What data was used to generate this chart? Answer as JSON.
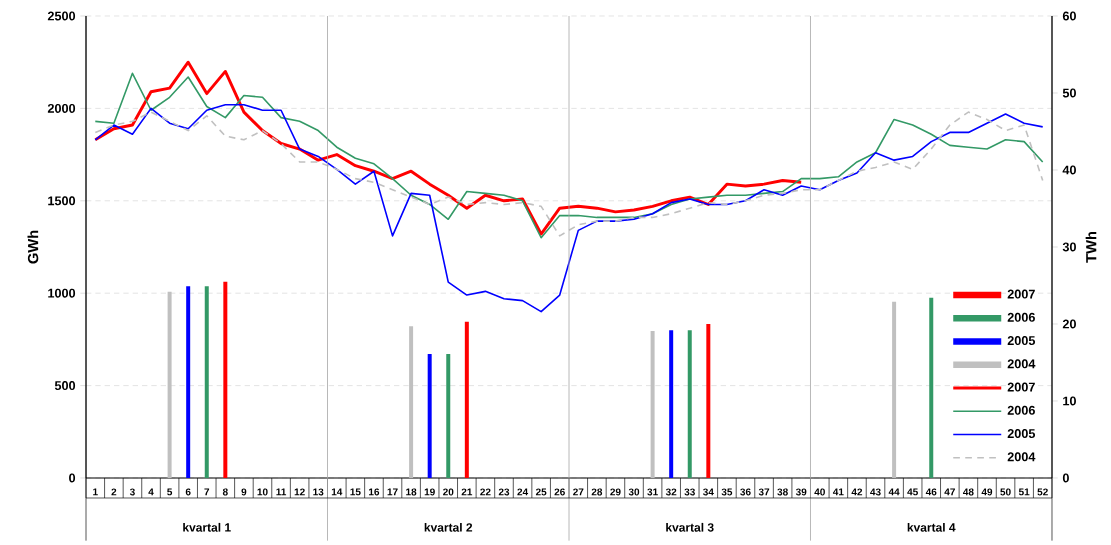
{
  "chart_data": {
    "type": "line",
    "ylabel": "GWh",
    "y2label": "TWh",
    "categories": [
      "1",
      "2",
      "3",
      "4",
      "5",
      "6",
      "7",
      "8",
      "9",
      "10",
      "11",
      "12",
      "13",
      "14",
      "15",
      "16",
      "17",
      "18",
      "19",
      "20",
      "21",
      "22",
      "23",
      "24",
      "25",
      "26",
      "27",
      "28",
      "29",
      "30",
      "31",
      "32",
      "33",
      "34",
      "35",
      "36",
      "37",
      "38",
      "39",
      "40",
      "41",
      "42",
      "43",
      "44",
      "45",
      "46",
      "47",
      "48",
      "49",
      "50",
      "51",
      "52"
    ],
    "annotations": [
      "kvartal 1",
      "kvartal 2",
      "kvartal 3",
      "kvartal 4"
    ],
    "ylim": [
      0,
      2500
    ],
    "yticks": [
      0,
      500,
      1000,
      1500,
      2000,
      2500
    ],
    "y2lim": [
      0,
      60
    ],
    "y2ticks": [
      0,
      10,
      20,
      30,
      40,
      50,
      60
    ],
    "grid": "y",
    "legend": "bottom right",
    "marker": "none",
    "series": [
      {
        "name": "2007",
        "type": "bar",
        "axis": "y2",
        "color": "#ff0000",
        "values": [
          null,
          null,
          null,
          null,
          null,
          null,
          null,
          25.5,
          null,
          null,
          null,
          null,
          null,
          null,
          null,
          null,
          null,
          null,
          null,
          null,
          20.3,
          null,
          null,
          null,
          null,
          null,
          null,
          null,
          null,
          null,
          null,
          null,
          null,
          20.0,
          null,
          null,
          null,
          null,
          null,
          null,
          null,
          null,
          null,
          null,
          null,
          null,
          null,
          null,
          null,
          null,
          null,
          null
        ]
      },
      {
        "name": "2006",
        "type": "bar",
        "axis": "y2",
        "color": "#339966",
        "values": [
          null,
          null,
          null,
          null,
          null,
          null,
          24.9,
          null,
          null,
          null,
          null,
          null,
          null,
          null,
          null,
          null,
          null,
          null,
          null,
          16.1,
          null,
          null,
          null,
          null,
          null,
          null,
          null,
          null,
          null,
          null,
          null,
          null,
          19.2,
          null,
          null,
          null,
          null,
          null,
          null,
          null,
          null,
          null,
          null,
          null,
          null,
          23.4,
          null,
          null,
          null,
          null,
          null,
          null
        ]
      },
      {
        "name": "2005",
        "type": "bar",
        "axis": "y2",
        "color": "#0000ff",
        "values": [
          null,
          null,
          null,
          null,
          null,
          24.9,
          null,
          null,
          null,
          null,
          null,
          null,
          null,
          null,
          null,
          null,
          null,
          null,
          16.1,
          null,
          null,
          null,
          null,
          null,
          null,
          null,
          null,
          null,
          null,
          null,
          null,
          19.2,
          null,
          null,
          null,
          null,
          null,
          null,
          null,
          null,
          null,
          null,
          null,
          null,
          null,
          null,
          null,
          null,
          null,
          null,
          null,
          null
        ]
      },
      {
        "name": "2004",
        "type": "bar",
        "axis": "y2",
        "color": "#c0c0c0",
        "values": [
          null,
          null,
          null,
          null,
          24.2,
          null,
          null,
          null,
          null,
          null,
          null,
          null,
          null,
          null,
          null,
          null,
          null,
          19.7,
          null,
          null,
          null,
          null,
          null,
          null,
          null,
          null,
          null,
          null,
          null,
          null,
          19.1,
          null,
          null,
          null,
          null,
          null,
          null,
          null,
          null,
          null,
          null,
          null,
          null,
          22.9,
          null,
          null,
          null,
          null,
          null,
          null,
          null,
          null
        ]
      },
      {
        "name": "2007",
        "color": "#ff0000",
        "line_style": "solid",
        "values": [
          1830,
          1890,
          1910,
          2090,
          2110,
          2250,
          2080,
          2200,
          1980,
          1880,
          1810,
          1780,
          1720,
          1750,
          1690,
          1660,
          1620,
          1660,
          1590,
          1530,
          1460,
          1530,
          1500,
          1510,
          1320,
          1460,
          1470,
          1460,
          1440,
          1450,
          1470,
          1500,
          1520,
          1480,
          1590,
          1580,
          1590,
          1610,
          1600,
          null,
          null,
          null,
          null,
          null,
          null,
          null,
          null,
          null,
          null,
          null,
          null,
          null
        ]
      },
      {
        "name": "2006",
        "color": "#339966",
        "line_style": "solid",
        "values": [
          1930,
          1920,
          2190,
          1990,
          2060,
          2170,
          2010,
          1950,
          2070,
          2060,
          1950,
          1930,
          1880,
          1790,
          1730,
          1700,
          1620,
          1530,
          1480,
          1400,
          1550,
          1540,
          1530,
          1500,
          1300,
          1420,
          1420,
          1410,
          1410,
          1410,
          1430,
          1480,
          1510,
          1520,
          1530,
          1530,
          1540,
          1550,
          1620,
          1620,
          1630,
          1710,
          1760,
          1940,
          1910,
          1860,
          1800,
          1790,
          1780,
          1830,
          1820,
          1710
        ]
      },
      {
        "name": "2005",
        "color": "#0000ff",
        "line_style": "solid",
        "values": [
          1830,
          1910,
          1860,
          2000,
          1920,
          1890,
          1990,
          2020,
          2020,
          1990,
          1990,
          1780,
          1740,
          1670,
          1590,
          1660,
          1310,
          1540,
          1530,
          1060,
          990,
          1010,
          970,
          960,
          900,
          990,
          1340,
          1390,
          1390,
          1400,
          1430,
          1490,
          1510,
          1480,
          1480,
          1500,
          1560,
          1530,
          1580,
          1560,
          1610,
          1650,
          1760,
          1720,
          1740,
          1820,
          1870,
          1870,
          1920,
          1970,
          1920,
          1900
        ]
      },
      {
        "name": "2004",
        "color": "#c0c0c0",
        "line_style": "dashed",
        "values": [
          1870,
          1910,
          1930,
          1980,
          1930,
          1880,
          1960,
          1850,
          1830,
          1880,
          1810,
          1710,
          1710,
          1670,
          1620,
          1600,
          1560,
          1520,
          1480,
          1520,
          1480,
          1490,
          1480,
          1490,
          1470,
          1310,
          1370,
          1390,
          1390,
          1410,
          1410,
          1430,
          1460,
          1490,
          1480,
          1500,
          1530,
          1540,
          1560,
          1560,
          1610,
          1660,
          1680,
          1710,
          1670,
          1780,
          1910,
          1980,
          1940,
          1880,
          1910,
          1610
        ]
      }
    ]
  }
}
